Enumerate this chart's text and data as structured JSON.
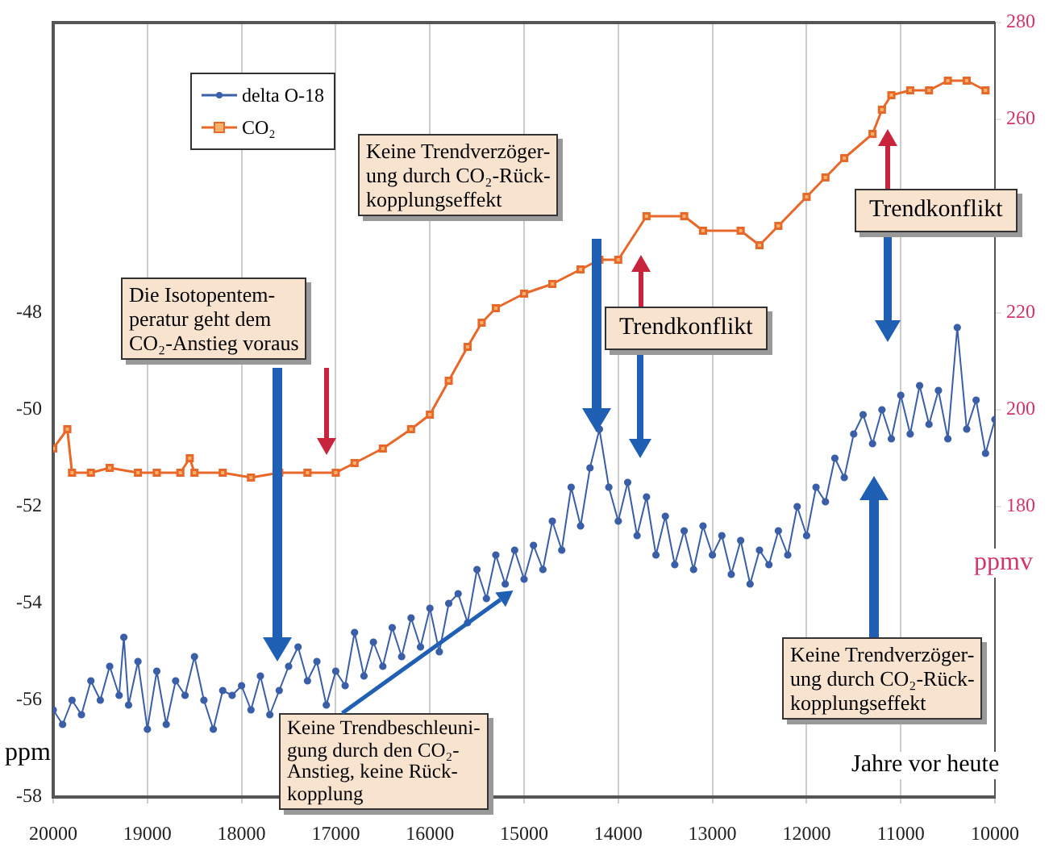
{
  "chart_data": {
    "type": "line",
    "xlabel": "Jahre vor heute",
    "ylabel": "ppm",
    "y2label": "ppmv",
    "xlim": [
      20000,
      10000
    ],
    "xticks": [
      20000,
      19000,
      18000,
      17000,
      16000,
      15000,
      14000,
      13000,
      12000,
      11000,
      10000
    ],
    "ylim": [
      -58,
      -42
    ],
    "yticks": [
      -58,
      -56,
      -54,
      -52,
      -50,
      -48
    ],
    "y2lim": [
      120,
      280
    ],
    "y2ticks": [
      180,
      200,
      220,
      260,
      280
    ],
    "grid": "x",
    "legend": "top left",
    "line_style": "solid",
    "series": [
      {
        "name": "delta O-18",
        "color": "#3a5fa8",
        "marker": "circle",
        "axis": "y",
        "x": [
          20000,
          19900,
          19800,
          19700,
          19600,
          19500,
          19400,
          19300,
          19250,
          19200,
          19100,
          19000,
          18900,
          18800,
          18700,
          18600,
          18500,
          18400,
          18300,
          18200,
          18100,
          18000,
          17900,
          17800,
          17700,
          17600,
          17500,
          17400,
          17300,
          17200,
          17100,
          17000,
          16900,
          16800,
          16700,
          16600,
          16500,
          16400,
          16300,
          16200,
          16100,
          16000,
          15900,
          15800,
          15700,
          15600,
          15500,
          15400,
          15300,
          15200,
          15100,
          15000,
          14900,
          14800,
          14700,
          14600,
          14500,
          14400,
          14300,
          14200,
          14100,
          14000,
          13900,
          13800,
          13700,
          13600,
          13500,
          13400,
          13300,
          13200,
          13100,
          13000,
          12900,
          12800,
          12700,
          12600,
          12500,
          12400,
          12300,
          12200,
          12100,
          12000,
          11900,
          11800,
          11700,
          11600,
          11500,
          11400,
          11300,
          11200,
          11100,
          11000,
          10900,
          10800,
          10700,
          10600,
          10500,
          10400,
          10300,
          10200,
          10100,
          10000
        ],
        "values": [
          -56.2,
          -56.5,
          -56.0,
          -56.3,
          -55.6,
          -56.0,
          -55.3,
          -55.9,
          -54.7,
          -56.1,
          -55.2,
          -56.6,
          -55.4,
          -56.5,
          -55.6,
          -55.9,
          -55.1,
          -56.0,
          -56.6,
          -55.8,
          -55.9,
          -55.7,
          -56.2,
          -55.5,
          -56.3,
          -55.8,
          -55.3,
          -54.9,
          -55.6,
          -55.2,
          -56.1,
          -55.4,
          -55.7,
          -54.6,
          -55.5,
          -54.8,
          -55.3,
          -54.5,
          -55.1,
          -54.3,
          -54.9,
          -54.1,
          -55.0,
          -54.0,
          -53.8,
          -54.4,
          -53.3,
          -53.9,
          -53.0,
          -53.6,
          -52.9,
          -53.5,
          -52.8,
          -53.3,
          -52.3,
          -52.9,
          -51.6,
          -52.4,
          -51.2,
          -50.4,
          -51.6,
          -52.3,
          -51.5,
          -52.6,
          -51.8,
          -53.0,
          -52.2,
          -53.2,
          -52.5,
          -53.3,
          -52.4,
          -53.0,
          -52.6,
          -53.4,
          -52.7,
          -53.6,
          -52.9,
          -53.2,
          -52.5,
          -53.0,
          -52.0,
          -52.6,
          -51.6,
          -51.9,
          -51.0,
          -51.4,
          -50.5,
          -50.1,
          -50.7,
          -50.0,
          -50.6,
          -49.7,
          -50.5,
          -49.5,
          -50.3,
          -49.6,
          -50.6,
          -48.3,
          -50.4,
          -49.8,
          -50.9,
          -50.2
        ]
      },
      {
        "name": "CO₂",
        "color": "#e8682a",
        "marker": "square",
        "axis": "y2",
        "x": [
          20000,
          19850,
          19800,
          19600,
          19400,
          19100,
          18900,
          18650,
          18550,
          18500,
          18200,
          17900,
          17600,
          17300,
          17000,
          16800,
          16500,
          16200,
          16000,
          15800,
          15600,
          15450,
          15300,
          15000,
          14700,
          14400,
          14200,
          14000,
          13700,
          13300,
          13100,
          12700,
          12500,
          12300,
          12000,
          11800,
          11600,
          11300,
          11200,
          11100,
          10900,
          10700,
          10500,
          10300,
          10100
        ],
        "values": [
          192,
          196,
          187,
          187,
          188,
          187,
          187,
          187,
          190,
          187,
          187,
          186,
          187,
          187,
          187,
          189,
          192,
          196,
          199,
          206,
          213,
          218,
          221,
          224,
          226,
          229,
          231,
          231,
          240,
          240,
          237,
          237,
          234,
          238,
          244,
          248,
          252,
          257,
          262,
          265,
          266,
          266,
          268,
          268,
          266
        ]
      }
    ],
    "annotations": [
      "Die Isotopentem-\nperatur geht dem\nCO₂-Anstieg voraus",
      "Keine Trendverzöger-\nung durch CO₂-Rück-\nkopplungseffekt",
      "Trendkonflikt",
      "Trendkonflikt",
      "Keine Trendverzöger-\nung durch CO₂-Rück-\nkopplungseffekt",
      "Keine Trendbeschleuni-\ngung durch den CO₂-\nAnstieg, keine Rück-\nkopplung"
    ]
  }
}
